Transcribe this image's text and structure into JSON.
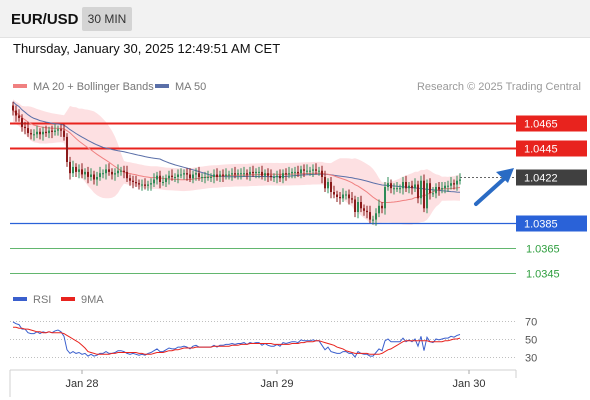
{
  "header": {
    "symbol": "EUR/USD",
    "timeframe": "30 MIN",
    "timestamp": "Thursday, January 30, 2025 12:49:51 AM CET"
  },
  "colors": {
    "ma20": "#f08080",
    "bollinger_fill": "#fde0e2",
    "ma50": "#5a6fa8",
    "up": "#2e8b57",
    "down": "#8b1a1a",
    "resistance": "#e8231e",
    "support": "#2a62d8",
    "target": "#2e9e3e",
    "current": "#404040",
    "arrow": "#2a6bc4",
    "rsi": "#3a5fcd",
    "rsi_ma": "#e8231e"
  },
  "chart_data": [
    {
      "type": "candlestick",
      "title": "",
      "legend": [
        "MA 20 + Bollinger Bands",
        "MA 50"
      ],
      "legend_position": "top-left",
      "credit": "Research © 2025 Trading Central",
      "x_ticks": [
        "Jan 28",
        "Jan 29",
        "Jan 30"
      ],
      "ylim": [
        1.0335,
        1.0485
      ],
      "close": [
        1.0475,
        1.0471,
        1.0469,
        1.0462,
        1.0461,
        1.0457,
        1.0456,
        1.0456,
        1.0458,
        1.0456,
        1.0458,
        1.0457,
        1.0459,
        1.0458,
        1.0459,
        1.046,
        1.0459,
        1.0454,
        1.0434,
        1.0425,
        1.043,
        1.0426,
        1.0428,
        1.0424,
        1.0426,
        1.0422,
        1.0424,
        1.042,
        1.0422,
        1.0425,
        1.0425,
        1.0428,
        1.0426,
        1.0424,
        1.0425,
        1.0427,
        1.0427,
        1.0426,
        1.0421,
        1.0419,
        1.0418,
        1.0417,
        1.0416,
        1.0416,
        1.0415,
        1.0416,
        1.0417,
        1.042,
        1.0423,
        1.0418,
        1.0418,
        1.0421,
        1.0423,
        1.0422,
        1.0422,
        1.0424,
        1.0424,
        1.0425,
        1.0424,
        1.0421,
        1.0424,
        1.0425,
        1.0422,
        1.0422,
        1.0422,
        1.0422,
        1.0422,
        1.0424,
        1.0422,
        1.0424,
        1.0423,
        1.0424,
        1.0424,
        1.0425,
        1.0424,
        1.0425,
        1.0425,
        1.0425,
        1.0424,
        1.0426,
        1.0425,
        1.0426,
        1.0426,
        1.0423,
        1.0425,
        1.0423,
        1.0422,
        1.0422,
        1.0423,
        1.0421,
        1.0425,
        1.0424,
        1.0425,
        1.0426,
        1.0426,
        1.0425,
        1.0428,
        1.0427,
        1.0427,
        1.0427,
        1.0428,
        1.0427,
        1.0427,
        1.0422,
        1.0413,
        1.0418,
        1.041,
        1.0408,
        1.0406,
        1.0405,
        1.0408,
        1.0408,
        1.0405,
        1.0404,
        1.0394,
        1.0402,
        1.0397,
        1.0395,
        1.0394,
        1.0388,
        1.0388,
        1.0393,
        1.0399,
        1.0397,
        1.0414,
        1.0417,
        1.0413,
        1.0413,
        1.0413,
        1.0413,
        1.0418,
        1.0413,
        1.0415,
        1.0413,
        1.0416,
        1.0405,
        1.0419,
        1.0397,
        1.0417,
        1.0409,
        1.0409,
        1.0414,
        1.0412,
        1.0413,
        1.0415,
        1.0415,
        1.0417,
        1.0416,
        1.0419,
        1.042
      ],
      "levels": [
        {
          "label": "1.0465",
          "value": 1.0465,
          "kind": "resistance"
        },
        {
          "label": "1.0445",
          "value": 1.0445,
          "kind": "resistance"
        },
        {
          "label": "1.0422",
          "value": 1.0422,
          "kind": "current"
        },
        {
          "label": "1.0385",
          "value": 1.0385,
          "kind": "support"
        },
        {
          "label": "1.0365",
          "value": 1.0365,
          "kind": "target"
        },
        {
          "label": "1.0345",
          "value": 1.0345,
          "kind": "target"
        }
      ]
    },
    {
      "type": "line",
      "legend": [
        "RSI",
        "9MA"
      ],
      "y_ticks": [
        70,
        50,
        30
      ],
      "ylim": [
        20,
        80
      ],
      "rsi": [
        69,
        67,
        66,
        61,
        61,
        57,
        56,
        56,
        58,
        56,
        58,
        57,
        58,
        57,
        59,
        60,
        58,
        53,
        38,
        34,
        36,
        34,
        35,
        33,
        34,
        31,
        33,
        31,
        32,
        34,
        34,
        36,
        34,
        34,
        35,
        37,
        37,
        36,
        34,
        33,
        34,
        33,
        32,
        33,
        32,
        34,
        35,
        37,
        39,
        36,
        36,
        38,
        40,
        39,
        39,
        41,
        41,
        42,
        41,
        39,
        42,
        43,
        41,
        41,
        41,
        41,
        41,
        43,
        41,
        43,
        43,
        44,
        44,
        45,
        44,
        45,
        45,
        46,
        44,
        46,
        45,
        46,
        46,
        43,
        45,
        43,
        42,
        42,
        44,
        42,
        46,
        45,
        46,
        47,
        47,
        46,
        49,
        48,
        48,
        48,
        49,
        48,
        48,
        43,
        38,
        41,
        36,
        35,
        34,
        34,
        36,
        36,
        34,
        34,
        30,
        36,
        34,
        33,
        33,
        31,
        31,
        35,
        39,
        37,
        48,
        50,
        47,
        47,
        47,
        47,
        51,
        47,
        49,
        47,
        50,
        42,
        53,
        37,
        52,
        47,
        46,
        50,
        49,
        50,
        51,
        51,
        53,
        52,
        54,
        55
      ],
      "ma9": [
        63,
        63,
        62,
        62,
        61,
        61,
        60,
        59,
        58,
        58,
        57,
        57,
        58,
        57,
        57,
        57,
        57,
        56,
        54,
        52,
        50,
        48,
        46,
        43,
        40,
        36,
        35,
        34,
        33,
        33,
        33,
        33,
        33,
        34,
        34,
        35,
        35,
        35,
        35,
        35,
        35,
        35,
        34,
        34,
        33,
        33,
        33,
        34,
        35,
        35,
        35,
        36,
        37,
        37,
        38,
        38,
        39,
        40,
        40,
        40,
        40,
        41,
        41,
        41,
        41,
        41,
        41,
        42,
        42,
        42,
        42,
        42,
        42,
        43,
        43,
        43,
        44,
        44,
        44,
        45,
        45,
        45,
        45,
        45,
        45,
        45,
        45,
        44,
        44,
        44,
        44,
        44,
        44,
        45,
        45,
        45,
        46,
        46,
        47,
        47,
        47,
        48,
        48,
        47,
        46,
        45,
        44,
        43,
        41,
        40,
        39,
        37,
        36,
        35,
        34,
        34,
        34,
        34,
        34,
        33,
        33,
        33,
        33,
        34,
        36,
        38,
        39,
        41,
        43,
        45,
        47,
        48,
        48,
        48,
        48,
        48,
        48,
        48,
        48,
        47,
        47,
        47,
        47,
        47,
        48,
        48,
        49,
        50,
        50,
        51
      ]
    }
  ]
}
